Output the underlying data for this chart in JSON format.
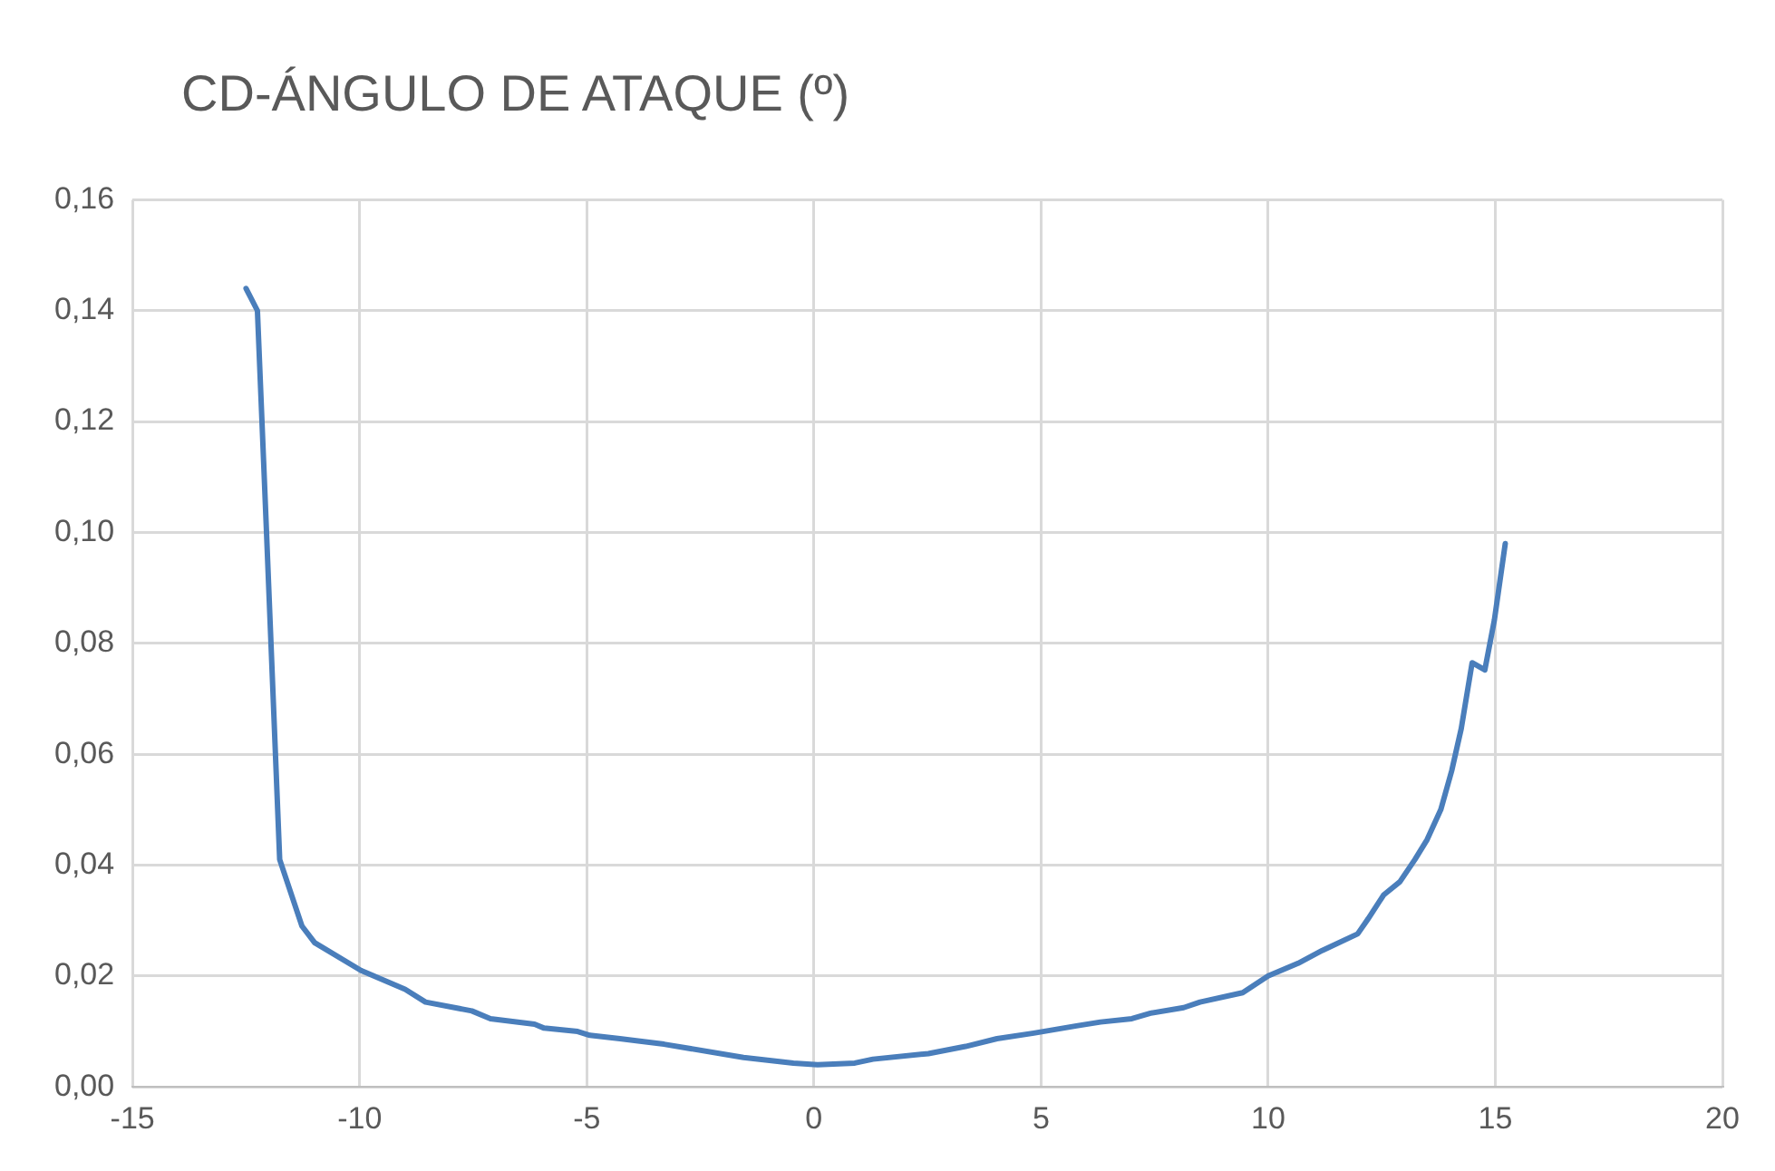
{
  "chart_data": {
    "type": "line",
    "title": "CD-ÁNGULO DE ATAQUE (º)",
    "series": [
      {
        "color": "#4a7ebb",
        "x": [
          -12.5,
          -12.25,
          -12.05,
          -11.76,
          -11.27,
          -10.99,
          -9.97,
          -9.0,
          -8.55,
          -7.53,
          -7.12,
          -6.15,
          -5.94,
          -5.2,
          -4.93,
          -4.27,
          -3.87,
          -3.3,
          -1.55,
          -0.45,
          0.08,
          0.9,
          1.3,
          2.52,
          3.34,
          4.03,
          4.84,
          5.78,
          6.31,
          7.0,
          7.41,
          8.14,
          8.5,
          9.44,
          10.0,
          10.66,
          11.19,
          11.97,
          12.2,
          12.54,
          12.9,
          13.23,
          13.5,
          13.8,
          14.04,
          14.25,
          14.49,
          14.77,
          14.98,
          15.22
        ],
        "values": [
          0.144,
          0.14,
          0.1,
          0.041,
          0.029,
          0.026,
          0.021,
          0.0176,
          0.0153,
          0.0137,
          0.0123,
          0.0113,
          0.0106,
          0.01,
          0.0093,
          0.0087,
          0.0083,
          0.0077,
          0.0053,
          0.0043,
          0.004,
          0.0043,
          0.005,
          0.006,
          0.0073,
          0.0087,
          0.0097,
          0.011,
          0.0117,
          0.0123,
          0.0133,
          0.0143,
          0.0153,
          0.017,
          0.02,
          0.0223,
          0.0246,
          0.0276,
          0.0303,
          0.0346,
          0.037,
          0.041,
          0.0446,
          0.05,
          0.057,
          0.0646,
          0.0765,
          0.0752,
          0.0842,
          0.098
        ]
      }
    ],
    "xlim": [
      -15,
      20
    ],
    "xticks": [
      -15,
      -10,
      -5,
      0,
      5,
      10,
      15,
      20
    ],
    "ylim": [
      0,
      0.16
    ],
    "yticks": [
      {
        "value": 0,
        "label": "0,00"
      },
      {
        "value": 0.02,
        "label": "0,02"
      },
      {
        "value": 0.04,
        "label": "0,04"
      },
      {
        "value": 0.06,
        "label": "0,06"
      },
      {
        "value": 0.08,
        "label": "0,08"
      },
      {
        "value": 0.1,
        "label": "0,10"
      },
      {
        "value": 0.12,
        "label": "0,12"
      },
      {
        "value": 0.14,
        "label": "0,14"
      },
      {
        "value": 0.16,
        "label": "0,16"
      }
    ],
    "grid": true,
    "marker": "none",
    "line_style": "solid",
    "legend": false
  }
}
